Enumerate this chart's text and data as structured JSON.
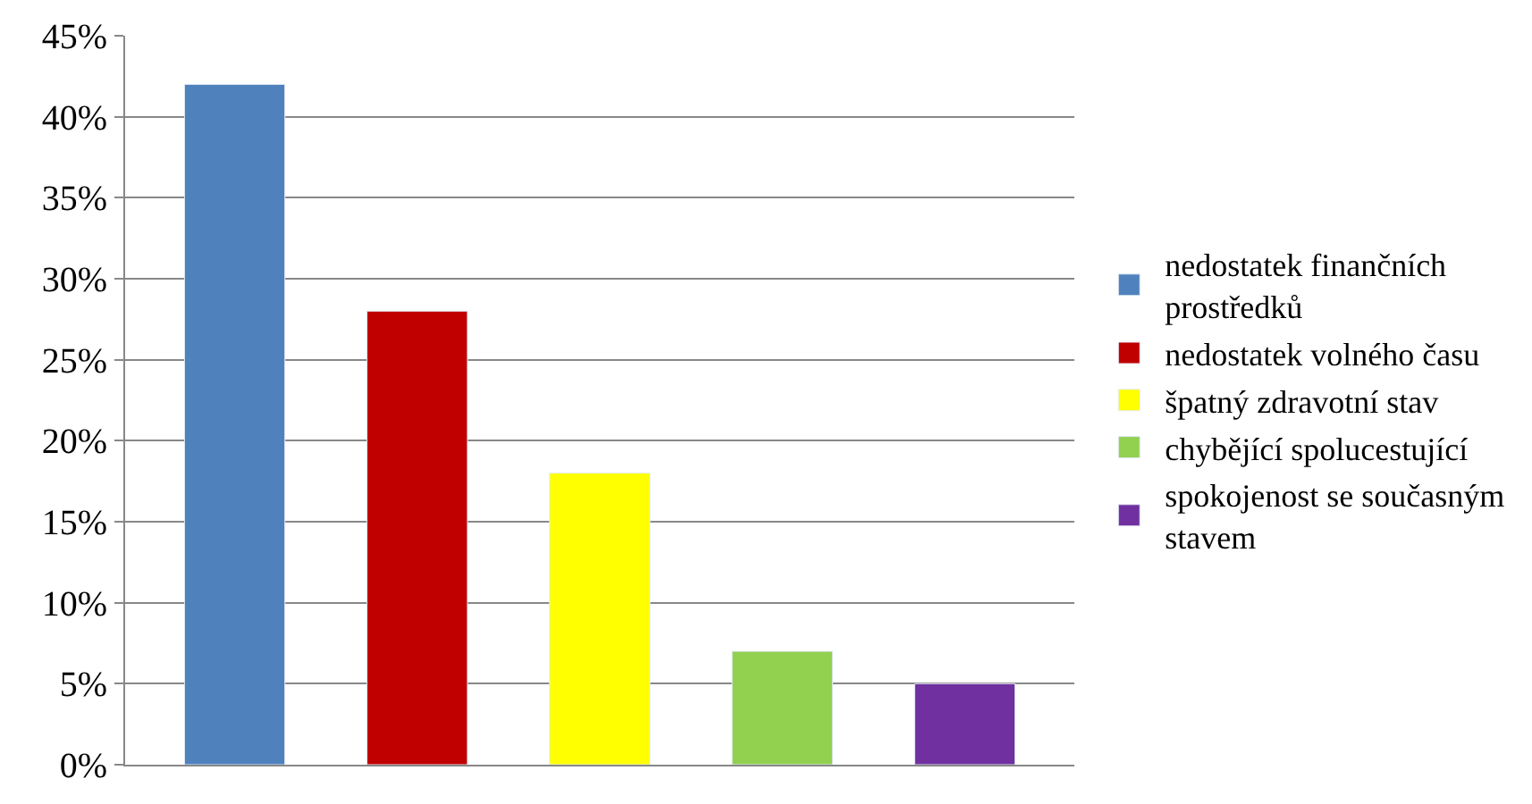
{
  "chart_data": {
    "type": "bar",
    "categories": [
      null,
      null,
      null,
      null,
      null
    ],
    "series": [
      {
        "name": "nedostatek finančních prostředků",
        "color": "#4f81bd",
        "values": [
          42,
          null,
          null,
          null,
          null
        ]
      },
      {
        "name": "nedostatek volného času",
        "color": "#c00000",
        "values": [
          null,
          28,
          null,
          null,
          null
        ]
      },
      {
        "name": "špatný zdravotní stav",
        "color": "#ffff00",
        "values": [
          null,
          null,
          18,
          null,
          null
        ]
      },
      {
        "name": "chybějící spolucestující",
        "color": "#92d050",
        "values": [
          null,
          null,
          null,
          7,
          null
        ]
      },
      {
        "name": "spokojenost se současným stavem",
        "color": "#7030a0",
        "values": [
          null,
          null,
          null,
          null,
          5
        ]
      }
    ],
    "ylim": [
      0,
      45
    ],
    "yticks": [
      {
        "value": 0,
        "label": "0%"
      },
      {
        "value": 5,
        "label": "5%"
      },
      {
        "value": 10,
        "label": "10%"
      },
      {
        "value": 15,
        "label": "15%"
      },
      {
        "value": 20,
        "label": "20%"
      },
      {
        "value": 25,
        "label": "25%"
      },
      {
        "value": 30,
        "label": "30%"
      },
      {
        "value": 35,
        "label": "35%"
      },
      {
        "value": 40,
        "label": "40%"
      },
      {
        "value": 45,
        "label": "45%"
      }
    ],
    "grid": "y",
    "legend": "right"
  }
}
